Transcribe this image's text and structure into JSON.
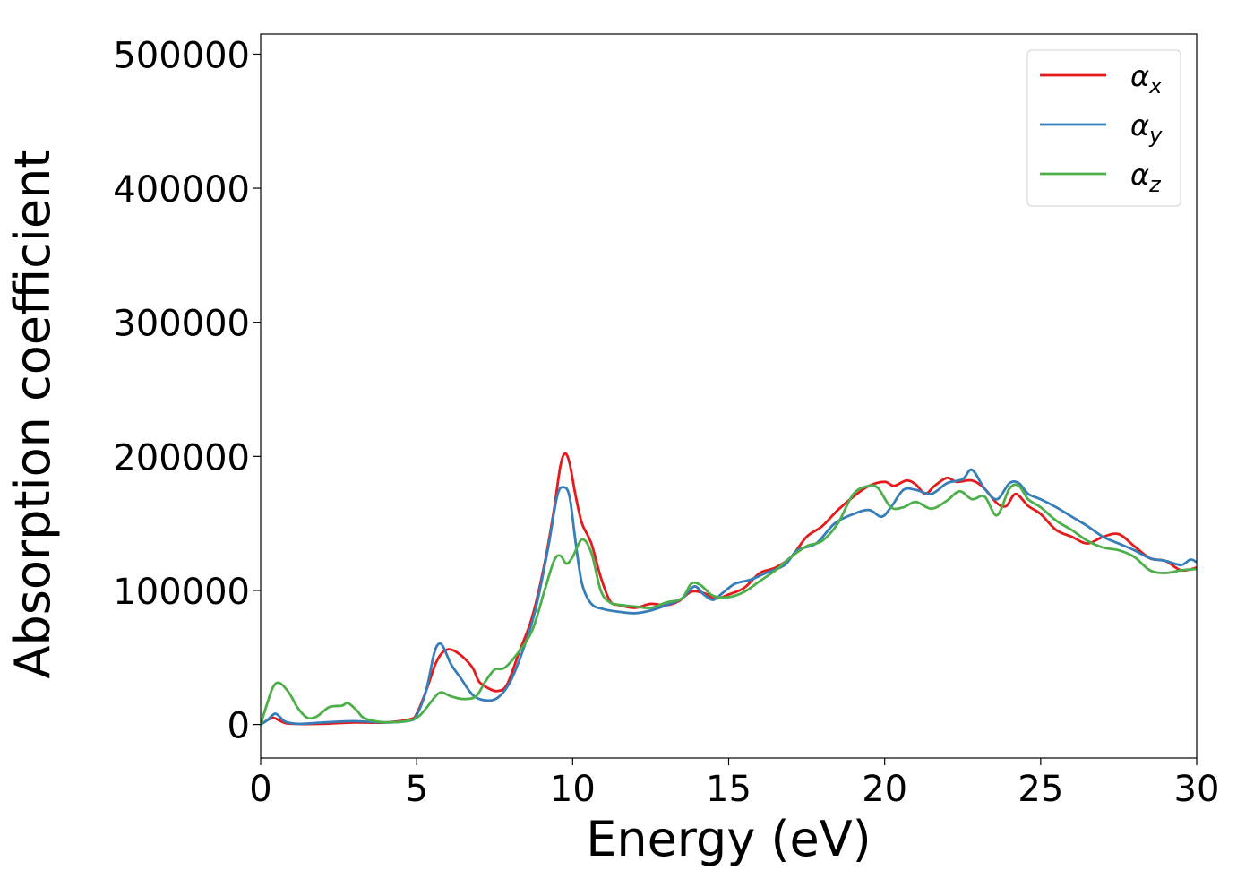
{
  "chart_data": {
    "type": "line",
    "xlabel": "Energy (eV)",
    "ylabel": "Absorption coefficient",
    "xlim": [
      0,
      30
    ],
    "ylim": [
      -25000,
      515000
    ],
    "xticks": [
      0,
      5,
      10,
      15,
      20,
      25,
      30
    ],
    "xtick_labels": [
      "0",
      "5",
      "10",
      "15",
      "20",
      "25",
      "30"
    ],
    "yticks": [
      0,
      100000,
      200000,
      300000,
      400000,
      500000
    ],
    "ytick_labels": [
      "0",
      "100000",
      "200000",
      "300000",
      "400000",
      "500000"
    ],
    "grid": false,
    "legend_position": "top-right",
    "series": [
      {
        "name": "α",
        "subscript": "x",
        "color": "#e41a1c",
        "points": [
          [
            0,
            0
          ],
          [
            0.2,
            3000
          ],
          [
            0.4,
            5000
          ],
          [
            0.6,
            3000
          ],
          [
            0.8,
            1000
          ],
          [
            1.2,
            400
          ],
          [
            2,
            500
          ],
          [
            3,
            1500
          ],
          [
            4,
            1500
          ],
          [
            4.8,
            4000
          ],
          [
            5,
            8000
          ],
          [
            5.3,
            25000
          ],
          [
            5.6,
            45000
          ],
          [
            5.8,
            53000
          ],
          [
            6,
            56000
          ],
          [
            6.2,
            55000
          ],
          [
            6.5,
            50000
          ],
          [
            6.8,
            42000
          ],
          [
            7,
            32000
          ],
          [
            7.3,
            27000
          ],
          [
            7.6,
            25000
          ],
          [
            7.9,
            30000
          ],
          [
            8.3,
            55000
          ],
          [
            8.7,
            80000
          ],
          [
            9.1,
            120000
          ],
          [
            9.4,
            160000
          ],
          [
            9.6,
            192000
          ],
          [
            9.75,
            202000
          ],
          [
            9.9,
            195000
          ],
          [
            10.1,
            170000
          ],
          [
            10.3,
            150000
          ],
          [
            10.6,
            135000
          ],
          [
            10.9,
            110000
          ],
          [
            11.2,
            92000
          ],
          [
            11.5,
            89000
          ],
          [
            12,
            87000
          ],
          [
            12.5,
            90000
          ],
          [
            13,
            89000
          ],
          [
            13.4,
            92000
          ],
          [
            13.8,
            99000
          ],
          [
            14.2,
            98000
          ],
          [
            14.6,
            94000
          ],
          [
            15,
            97000
          ],
          [
            15.5,
            102000
          ],
          [
            16,
            113000
          ],
          [
            16.5,
            117000
          ],
          [
            17,
            125000
          ],
          [
            17.5,
            140000
          ],
          [
            18,
            148000
          ],
          [
            18.5,
            160000
          ],
          [
            19,
            170000
          ],
          [
            19.5,
            178000
          ],
          [
            20,
            181000
          ],
          [
            20.3,
            178000
          ],
          [
            20.7,
            182000
          ],
          [
            21,
            179000
          ],
          [
            21.3,
            172000
          ],
          [
            21.6,
            178000
          ],
          [
            22,
            184000
          ],
          [
            22.3,
            181000
          ],
          [
            22.8,
            182000
          ],
          [
            23.2,
            176000
          ],
          [
            23.6,
            165000
          ],
          [
            23.9,
            163000
          ],
          [
            24.2,
            172000
          ],
          [
            24.6,
            163000
          ],
          [
            25,
            157000
          ],
          [
            25.5,
            145000
          ],
          [
            26,
            140000
          ],
          [
            26.5,
            135000
          ],
          [
            27,
            140000
          ],
          [
            27.5,
            142000
          ],
          [
            28,
            133000
          ],
          [
            28.5,
            124000
          ],
          [
            29,
            122000
          ],
          [
            29.5,
            115000
          ],
          [
            30,
            117000
          ]
        ]
      },
      {
        "name": "α",
        "subscript": "y",
        "color": "#377eb8",
        "points": [
          [
            0,
            0
          ],
          [
            0.2,
            3000
          ],
          [
            0.45,
            8000
          ],
          [
            0.6,
            6000
          ],
          [
            0.8,
            2000
          ],
          [
            1.2,
            500
          ],
          [
            2,
            1500
          ],
          [
            3,
            2500
          ],
          [
            4,
            1500
          ],
          [
            4.8,
            3000
          ],
          [
            5,
            7000
          ],
          [
            5.3,
            25000
          ],
          [
            5.55,
            52000
          ],
          [
            5.7,
            60000
          ],
          [
            5.85,
            58000
          ],
          [
            6.1,
            45000
          ],
          [
            6.4,
            35000
          ],
          [
            6.8,
            22000
          ],
          [
            7.2,
            18000
          ],
          [
            7.6,
            20000
          ],
          [
            8,
            32000
          ],
          [
            8.4,
            55000
          ],
          [
            8.8,
            85000
          ],
          [
            9.2,
            130000
          ],
          [
            9.5,
            170000
          ],
          [
            9.7,
            177000
          ],
          [
            9.9,
            170000
          ],
          [
            10.1,
            135000
          ],
          [
            10.3,
            105000
          ],
          [
            10.6,
            90000
          ],
          [
            11,
            86000
          ],
          [
            11.5,
            84000
          ],
          [
            12,
            83000
          ],
          [
            12.5,
            85000
          ],
          [
            13,
            89000
          ],
          [
            13.5,
            94000
          ],
          [
            13.9,
            103000
          ],
          [
            14.2,
            97000
          ],
          [
            14.5,
            93000
          ],
          [
            14.8,
            98000
          ],
          [
            15.2,
            105000
          ],
          [
            15.7,
            108000
          ],
          [
            16.2,
            113000
          ],
          [
            16.8,
            119000
          ],
          [
            17.2,
            130000
          ],
          [
            17.8,
            135000
          ],
          [
            18.4,
            150000
          ],
          [
            19,
            157000
          ],
          [
            19.5,
            160000
          ],
          [
            19.9,
            155000
          ],
          [
            20.2,
            162000
          ],
          [
            20.6,
            175000
          ],
          [
            21,
            175000
          ],
          [
            21.5,
            172000
          ],
          [
            22,
            180000
          ],
          [
            22.5,
            183000
          ],
          [
            22.8,
            190000
          ],
          [
            23.2,
            176000
          ],
          [
            23.6,
            168000
          ],
          [
            24,
            180000
          ],
          [
            24.3,
            180000
          ],
          [
            24.6,
            172000
          ],
          [
            25,
            168000
          ],
          [
            25.5,
            162000
          ],
          [
            26,
            155000
          ],
          [
            26.5,
            148000
          ],
          [
            27,
            140000
          ],
          [
            27.5,
            135000
          ],
          [
            28,
            130000
          ],
          [
            28.5,
            124000
          ],
          [
            29,
            122000
          ],
          [
            29.5,
            119000
          ],
          [
            29.8,
            123000
          ],
          [
            30,
            121000
          ]
        ]
      },
      {
        "name": "α",
        "subscript": "z",
        "color": "#4daf4a",
        "points": [
          [
            0,
            0
          ],
          [
            0.2,
            15000
          ],
          [
            0.4,
            28000
          ],
          [
            0.6,
            31000
          ],
          [
            0.9,
            24000
          ],
          [
            1.2,
            12000
          ],
          [
            1.5,
            5000
          ],
          [
            1.8,
            6000
          ],
          [
            2.2,
            13000
          ],
          [
            2.6,
            14000
          ],
          [
            2.8,
            16000
          ],
          [
            3.1,
            10000
          ],
          [
            3.3,
            5000
          ],
          [
            3.8,
            2000
          ],
          [
            4.5,
            2000
          ],
          [
            5,
            5000
          ],
          [
            5.3,
            12000
          ],
          [
            5.6,
            21000
          ],
          [
            5.8,
            24000
          ],
          [
            6.1,
            21000
          ],
          [
            6.5,
            19000
          ],
          [
            6.9,
            21000
          ],
          [
            7.2,
            32000
          ],
          [
            7.5,
            41000
          ],
          [
            7.8,
            42000
          ],
          [
            8.2,
            52000
          ],
          [
            8.7,
            70000
          ],
          [
            9.1,
            100000
          ],
          [
            9.4,
            122000
          ],
          [
            9.6,
            126000
          ],
          [
            9.8,
            120000
          ],
          [
            10,
            125000
          ],
          [
            10.3,
            138000
          ],
          [
            10.6,
            128000
          ],
          [
            10.9,
            100000
          ],
          [
            11.2,
            91000
          ],
          [
            11.6,
            89000
          ],
          [
            12,
            88000
          ],
          [
            12.5,
            87000
          ],
          [
            13,
            91000
          ],
          [
            13.5,
            94000
          ],
          [
            13.8,
            105000
          ],
          [
            14.1,
            104000
          ],
          [
            14.5,
            96000
          ],
          [
            15,
            95000
          ],
          [
            15.5,
            99000
          ],
          [
            16,
            107000
          ],
          [
            16.5,
            115000
          ],
          [
            17,
            125000
          ],
          [
            17.5,
            133000
          ],
          [
            18,
            137000
          ],
          [
            18.5,
            150000
          ],
          [
            19,
            172000
          ],
          [
            19.5,
            178000
          ],
          [
            19.8,
            176000
          ],
          [
            20.2,
            162000
          ],
          [
            20.6,
            162000
          ],
          [
            21,
            166000
          ],
          [
            21.5,
            161000
          ],
          [
            22,
            167000
          ],
          [
            22.4,
            174000
          ],
          [
            22.8,
            168000
          ],
          [
            23.2,
            170000
          ],
          [
            23.6,
            156000
          ],
          [
            24,
            176000
          ],
          [
            24.3,
            178000
          ],
          [
            24.6,
            168000
          ],
          [
            25,
            162000
          ],
          [
            25.5,
            152000
          ],
          [
            26,
            145000
          ],
          [
            26.5,
            137000
          ],
          [
            27,
            132000
          ],
          [
            27.5,
            130000
          ],
          [
            28,
            125000
          ],
          [
            28.5,
            115000
          ],
          [
            29,
            113000
          ],
          [
            29.5,
            115000
          ],
          [
            30,
            116000
          ]
        ]
      }
    ]
  }
}
